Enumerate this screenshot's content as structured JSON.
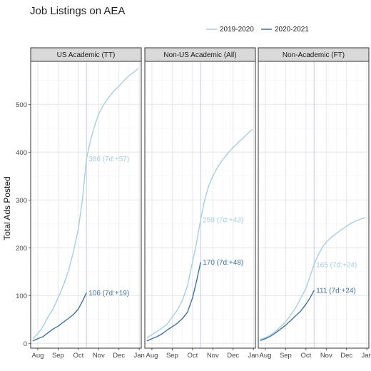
{
  "chart_data": {
    "type": "line",
    "title": "Job Listings on AEA",
    "xlabel": "",
    "ylabel": "Total Ads Posted",
    "ylim": [
      -10,
      590
    ],
    "xlim_months": [
      -0.35,
      5.1
    ],
    "x_tick_labels": [
      "Aug",
      "Sep",
      "Oct",
      "Nov",
      "Dec",
      "Jan"
    ],
    "y_ticks": [
      0,
      100,
      200,
      300,
      400,
      500
    ],
    "grid": true,
    "legend_position": "top-right",
    "reference_line_month": 2.4,
    "colors": {
      "2019-2020": "#a9cde2",
      "2020-2021": "#3e72a0",
      "reference": "#c5cbe6"
    },
    "series_names": [
      "2019-2020",
      "2020-2021"
    ],
    "panels": [
      {
        "strip": "US Academic (TT)",
        "series": [
          {
            "name": "2019-2020",
            "x": [
              -0.25,
              0.0,
              0.25,
              0.5,
              0.75,
              1.0,
              1.25,
              1.5,
              1.75,
              2.0,
              2.2,
              2.4,
              2.6,
              2.8,
              3.0,
              3.25,
              3.5,
              3.75,
              4.0,
              4.25,
              4.5,
              4.75,
              4.95
            ],
            "y": [
              10,
              20,
              35,
              55,
              72,
              95,
              120,
              150,
              190,
              240,
              300,
              386,
              425,
              455,
              480,
              500,
              515,
              528,
              538,
              550,
              560,
              568,
              575
            ]
          },
          {
            "name": "2020-2021",
            "x": [
              -0.25,
              0.0,
              0.25,
              0.5,
              0.75,
              1.0,
              1.25,
              1.5,
              1.75,
              2.0,
              2.2,
              2.4
            ],
            "y": [
              5,
              10,
              14,
              22,
              30,
              36,
              44,
              52,
              60,
              72,
              88,
              106
            ]
          }
        ],
        "annotations": [
          {
            "series": "2019-2020",
            "y": 386,
            "text": "386 (7d:+57)"
          },
          {
            "series": "2020-2021",
            "y": 106,
            "text": "106 (7d:+19)"
          }
        ]
      },
      {
        "strip": "Non-US Academic (All)",
        "series": [
          {
            "name": "2019-2020",
            "x": [
              -0.25,
              0.0,
              0.25,
              0.5,
              0.75,
              1.0,
              1.25,
              1.5,
              1.75,
              2.0,
              2.2,
              2.4,
              2.6,
              2.8,
              3.0,
              3.25,
              3.5,
              3.75,
              4.0,
              4.25,
              4.5,
              4.75,
              4.95
            ],
            "y": [
              12,
              18,
              25,
              32,
              40,
              55,
              70,
              90,
              120,
              170,
              210,
              259,
              300,
              330,
              350,
              370,
              385,
              398,
              410,
              420,
              430,
              440,
              448
            ]
          },
          {
            "name": "2020-2021",
            "x": [
              -0.25,
              0.0,
              0.25,
              0.5,
              0.75,
              1.0,
              1.25,
              1.5,
              1.75,
              2.0,
              2.2,
              2.4
            ],
            "y": [
              5,
              10,
              14,
              20,
              28,
              35,
              42,
              52,
              65,
              95,
              130,
              170
            ]
          }
        ],
        "annotations": [
          {
            "series": "2019-2020",
            "y": 259,
            "text": "259 (7d:+43)"
          },
          {
            "series": "2020-2021",
            "y": 170,
            "text": "170 (7d:+48)"
          }
        ]
      },
      {
        "strip": "Non-Academic (FT)",
        "series": [
          {
            "name": "2019-2020",
            "x": [
              -0.25,
              0.0,
              0.25,
              0.5,
              0.75,
              1.0,
              1.25,
              1.5,
              1.75,
              2.0,
              2.2,
              2.4,
              2.6,
              2.8,
              3.0,
              3.25,
              3.5,
              3.75,
              4.0,
              4.25,
              4.5,
              4.75,
              4.95
            ],
            "y": [
              8,
              12,
              18,
              25,
              35,
              45,
              60,
              75,
              95,
              115,
              140,
              165,
              185,
              200,
              212,
              222,
              230,
              238,
              245,
              252,
              257,
              261,
              263
            ]
          },
          {
            "name": "2020-2021",
            "x": [
              -0.25,
              0.0,
              0.25,
              0.5,
              0.75,
              1.0,
              1.25,
              1.5,
              1.75,
              2.0,
              2.2,
              2.4
            ],
            "y": [
              6,
              10,
              15,
              22,
              30,
              38,
              48,
              58,
              68,
              82,
              95,
              111
            ]
          }
        ],
        "annotations": [
          {
            "series": "2019-2020",
            "y": 165,
            "text": "165 (7d:+24)"
          },
          {
            "series": "2020-2021",
            "y": 111,
            "text": "111 (7d:+24)"
          }
        ]
      }
    ]
  }
}
